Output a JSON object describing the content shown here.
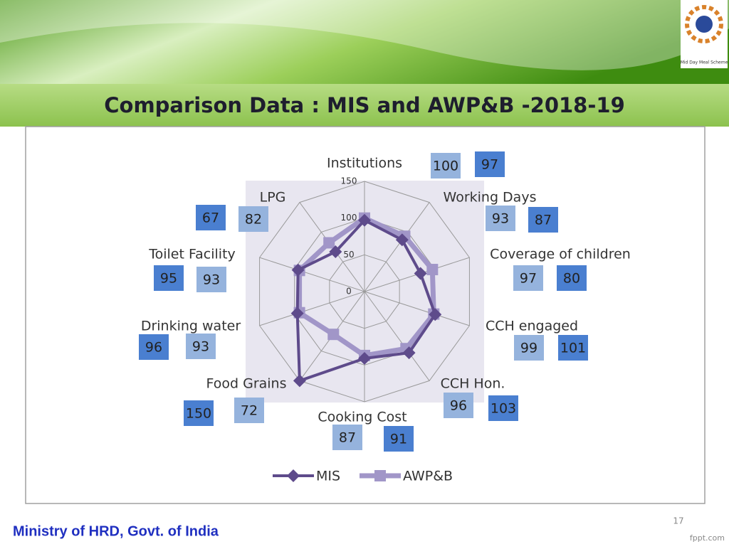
{
  "slide_title": "Comparison Data : MIS and AWP&B -2018-19",
  "footer": "Ministry of HRD, Govt. of India",
  "page_number": "17",
  "watermark": "fppt.com",
  "logo_caption": "Mid Day Meal Scheme",
  "chart_data": {
    "type": "radar",
    "categories": [
      "Institutions",
      "Working Days",
      "Coverage of children",
      "CCH engaged",
      "CCH Hon.",
      "Cooking Cost",
      "Food Grains",
      "Drinking water",
      "Toilet Facility",
      "LPG"
    ],
    "series": [
      {
        "name": "MIS",
        "color": "#5e4b8b",
        "label_color": "#4a7fd0",
        "values": [
          97,
          87,
          80,
          101,
          103,
          91,
          150,
          96,
          95,
          67
        ]
      },
      {
        "name": "AWP&B",
        "color": "#a196c8",
        "label_color": "#95b3dd",
        "values": [
          100,
          93,
          97,
          99,
          96,
          87,
          72,
          93,
          93,
          82
        ]
      }
    ],
    "ylim": [
      0,
      150
    ],
    "yticks": [
      0,
      50,
      100,
      150
    ],
    "grid": true,
    "legend": "bottom"
  }
}
